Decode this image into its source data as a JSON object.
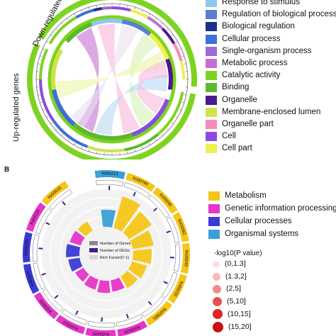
{
  "panel_a": {
    "side_labels": {
      "down": "Down-regulated genes",
      "up": "Up-regulated genes"
    },
    "legend": [
      {
        "label": "Response to stimulus",
        "color": "#8fc8ec"
      },
      {
        "label": "Regulation of biological process",
        "color": "#5b7fd0"
      },
      {
        "label": "Biological regulation",
        "color": "#1c2f8a"
      },
      {
        "label": "Cellular process",
        "color": "#3d6fd8"
      },
      {
        "label": "Single-organism process",
        "color": "#9b6bd6"
      },
      {
        "label": "Metabolic process",
        "color": "#c46fd6"
      },
      {
        "label": "Catalytic activity",
        "color": "#7ed321"
      },
      {
        "label": "Binding",
        "color": "#5cb82c"
      },
      {
        "label": "Organelle",
        "color": "#4a1a8c"
      },
      {
        "label": "Membrane-enclosed lumen",
        "color": "#cfe34a"
      },
      {
        "label": "Organelle part",
        "color": "#f58bb8"
      },
      {
        "label": "Cell",
        "color": "#8a4ce0"
      },
      {
        "label": "Cell part",
        "color": "#f0f04a"
      }
    ]
  },
  "panel_b": {
    "panel_label": "B",
    "legend": [
      {
        "label": "Metabolism",
        "color": "#f5c518"
      },
      {
        "label": "Genetic information processing",
        "color": "#e535c8"
      },
      {
        "label": "Cellular processes",
        "color": "#3a3ad6"
      },
      {
        "label": "Organismal systems",
        "color": "#3aa0d8"
      }
    ],
    "pvalue_title": "-log10(P value)",
    "pvalue_bins": [
      {
        "label": "(0,1.3]",
        "color": "#fde0e0",
        "size": 10
      },
      {
        "label": "(1.3,2]",
        "color": "#f9b9b9",
        "size": 11
      },
      {
        "label": "(2,5]",
        "color": "#f28a8a",
        "size": 12
      },
      {
        "label": "(5,10]",
        "color": "#e94f4f",
        "size": 13
      },
      {
        "label": "(10,15]",
        "color": "#e02222",
        "size": 14
      },
      {
        "label": "(15,20]",
        "color": "#c90f0f",
        "size": 15
      }
    ],
    "inner_legend": [
      {
        "label": "Number of Genes",
        "color": "#8a8a8a"
      },
      {
        "label": "Number of DEGs",
        "color": "#3b1f8c"
      },
      {
        "label": "Rich Factor(0~1)",
        "color": "#d6d6d6"
      }
    ]
  },
  "chart_data": [
    {
      "type": "chord",
      "title": "",
      "groups": [
        "Down-regulated genes",
        "Up-regulated genes"
      ],
      "categories": [
        "Response to stimulus",
        "Regulation of biological process",
        "Biological regulation",
        "Cellular process",
        "Single-organism process",
        "Metabolic process",
        "Catalytic activity",
        "Binding",
        "Organelle",
        "Membrane-enclosed lumen",
        "Organelle part",
        "Cell",
        "Cell part"
      ]
    },
    {
      "type": "circular-bar",
      "title": "",
      "pathway_labels": [
        "ko04213",
        "ko00790",
        "ko00040",
        "ko00062",
        "ko00240",
        "ko00232",
        "ko00981",
        "ko03420",
        "ko03430",
        "ko03010",
        "ko03020",
        "ko04144",
        "ko04145",
        "ko04120",
        "ko00010"
      ],
      "pathway_class": [
        "Organismal systems",
        "Metabolism",
        "Metabolism",
        "Metabolism",
        "Metabolism",
        "Metabolism",
        "Metabolism",
        "Genetic information processing",
        "Genetic information processing",
        "Genetic information processing",
        "Genetic information processing",
        "Cellular processes",
        "Cellular processes",
        "Genetic information processing",
        "Metabolism"
      ],
      "rich_factor": [
        0.45,
        0.85,
        0.7,
        0.55,
        0.48,
        0.4,
        0.35,
        0.3,
        0.32,
        0.28,
        0.25,
        0.3,
        0.35,
        0.3,
        0.28
      ],
      "outer_scale_ticks": [
        0,
        10,
        20,
        30,
        40,
        50,
        60,
        70,
        80,
        90,
        100
      ],
      "series": [
        {
          "name": "Number of Genes"
        },
        {
          "name": "Number of DEGs"
        },
        {
          "name": "Rich Factor(0~1)"
        }
      ]
    }
  ]
}
